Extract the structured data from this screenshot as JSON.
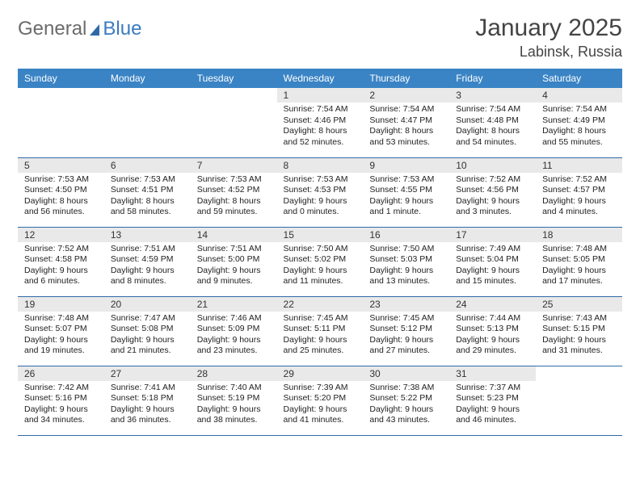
{
  "logo": {
    "text_gray": "General",
    "text_blue": "Blue"
  },
  "title": "January 2025",
  "location": "Labinsk, Russia",
  "colors": {
    "header_bg": "#3a84c5",
    "header_text": "#ffffff",
    "daynum_bg": "#e9e9e9",
    "row_border": "#2f6aa8",
    "logo_gray": "#6b6b6b",
    "logo_blue": "#3a7bbf",
    "text": "#222222"
  },
  "day_headers": [
    "Sunday",
    "Monday",
    "Tuesday",
    "Wednesday",
    "Thursday",
    "Friday",
    "Saturday"
  ],
  "weeks": [
    [
      {
        "n": "",
        "lines": []
      },
      {
        "n": "",
        "lines": []
      },
      {
        "n": "",
        "lines": []
      },
      {
        "n": "1",
        "lines": [
          "Sunrise: 7:54 AM",
          "Sunset: 4:46 PM",
          "Daylight: 8 hours",
          "and 52 minutes."
        ]
      },
      {
        "n": "2",
        "lines": [
          "Sunrise: 7:54 AM",
          "Sunset: 4:47 PM",
          "Daylight: 8 hours",
          "and 53 minutes."
        ]
      },
      {
        "n": "3",
        "lines": [
          "Sunrise: 7:54 AM",
          "Sunset: 4:48 PM",
          "Daylight: 8 hours",
          "and 54 minutes."
        ]
      },
      {
        "n": "4",
        "lines": [
          "Sunrise: 7:54 AM",
          "Sunset: 4:49 PM",
          "Daylight: 8 hours",
          "and 55 minutes."
        ]
      }
    ],
    [
      {
        "n": "5",
        "lines": [
          "Sunrise: 7:53 AM",
          "Sunset: 4:50 PM",
          "Daylight: 8 hours",
          "and 56 minutes."
        ]
      },
      {
        "n": "6",
        "lines": [
          "Sunrise: 7:53 AM",
          "Sunset: 4:51 PM",
          "Daylight: 8 hours",
          "and 58 minutes."
        ]
      },
      {
        "n": "7",
        "lines": [
          "Sunrise: 7:53 AM",
          "Sunset: 4:52 PM",
          "Daylight: 8 hours",
          "and 59 minutes."
        ]
      },
      {
        "n": "8",
        "lines": [
          "Sunrise: 7:53 AM",
          "Sunset: 4:53 PM",
          "Daylight: 9 hours",
          "and 0 minutes."
        ]
      },
      {
        "n": "9",
        "lines": [
          "Sunrise: 7:53 AM",
          "Sunset: 4:55 PM",
          "Daylight: 9 hours",
          "and 1 minute."
        ]
      },
      {
        "n": "10",
        "lines": [
          "Sunrise: 7:52 AM",
          "Sunset: 4:56 PM",
          "Daylight: 9 hours",
          "and 3 minutes."
        ]
      },
      {
        "n": "11",
        "lines": [
          "Sunrise: 7:52 AM",
          "Sunset: 4:57 PM",
          "Daylight: 9 hours",
          "and 4 minutes."
        ]
      }
    ],
    [
      {
        "n": "12",
        "lines": [
          "Sunrise: 7:52 AM",
          "Sunset: 4:58 PM",
          "Daylight: 9 hours",
          "and 6 minutes."
        ]
      },
      {
        "n": "13",
        "lines": [
          "Sunrise: 7:51 AM",
          "Sunset: 4:59 PM",
          "Daylight: 9 hours",
          "and 8 minutes."
        ]
      },
      {
        "n": "14",
        "lines": [
          "Sunrise: 7:51 AM",
          "Sunset: 5:00 PM",
          "Daylight: 9 hours",
          "and 9 minutes."
        ]
      },
      {
        "n": "15",
        "lines": [
          "Sunrise: 7:50 AM",
          "Sunset: 5:02 PM",
          "Daylight: 9 hours",
          "and 11 minutes."
        ]
      },
      {
        "n": "16",
        "lines": [
          "Sunrise: 7:50 AM",
          "Sunset: 5:03 PM",
          "Daylight: 9 hours",
          "and 13 minutes."
        ]
      },
      {
        "n": "17",
        "lines": [
          "Sunrise: 7:49 AM",
          "Sunset: 5:04 PM",
          "Daylight: 9 hours",
          "and 15 minutes."
        ]
      },
      {
        "n": "18",
        "lines": [
          "Sunrise: 7:48 AM",
          "Sunset: 5:05 PM",
          "Daylight: 9 hours",
          "and 17 minutes."
        ]
      }
    ],
    [
      {
        "n": "19",
        "lines": [
          "Sunrise: 7:48 AM",
          "Sunset: 5:07 PM",
          "Daylight: 9 hours",
          "and 19 minutes."
        ]
      },
      {
        "n": "20",
        "lines": [
          "Sunrise: 7:47 AM",
          "Sunset: 5:08 PM",
          "Daylight: 9 hours",
          "and 21 minutes."
        ]
      },
      {
        "n": "21",
        "lines": [
          "Sunrise: 7:46 AM",
          "Sunset: 5:09 PM",
          "Daylight: 9 hours",
          "and 23 minutes."
        ]
      },
      {
        "n": "22",
        "lines": [
          "Sunrise: 7:45 AM",
          "Sunset: 5:11 PM",
          "Daylight: 9 hours",
          "and 25 minutes."
        ]
      },
      {
        "n": "23",
        "lines": [
          "Sunrise: 7:45 AM",
          "Sunset: 5:12 PM",
          "Daylight: 9 hours",
          "and 27 minutes."
        ]
      },
      {
        "n": "24",
        "lines": [
          "Sunrise: 7:44 AM",
          "Sunset: 5:13 PM",
          "Daylight: 9 hours",
          "and 29 minutes."
        ]
      },
      {
        "n": "25",
        "lines": [
          "Sunrise: 7:43 AM",
          "Sunset: 5:15 PM",
          "Daylight: 9 hours",
          "and 31 minutes."
        ]
      }
    ],
    [
      {
        "n": "26",
        "lines": [
          "Sunrise: 7:42 AM",
          "Sunset: 5:16 PM",
          "Daylight: 9 hours",
          "and 34 minutes."
        ]
      },
      {
        "n": "27",
        "lines": [
          "Sunrise: 7:41 AM",
          "Sunset: 5:18 PM",
          "Daylight: 9 hours",
          "and 36 minutes."
        ]
      },
      {
        "n": "28",
        "lines": [
          "Sunrise: 7:40 AM",
          "Sunset: 5:19 PM",
          "Daylight: 9 hours",
          "and 38 minutes."
        ]
      },
      {
        "n": "29",
        "lines": [
          "Sunrise: 7:39 AM",
          "Sunset: 5:20 PM",
          "Daylight: 9 hours",
          "and 41 minutes."
        ]
      },
      {
        "n": "30",
        "lines": [
          "Sunrise: 7:38 AM",
          "Sunset: 5:22 PM",
          "Daylight: 9 hours",
          "and 43 minutes."
        ]
      },
      {
        "n": "31",
        "lines": [
          "Sunrise: 7:37 AM",
          "Sunset: 5:23 PM",
          "Daylight: 9 hours",
          "and 46 minutes."
        ]
      },
      {
        "n": "",
        "lines": []
      }
    ]
  ]
}
